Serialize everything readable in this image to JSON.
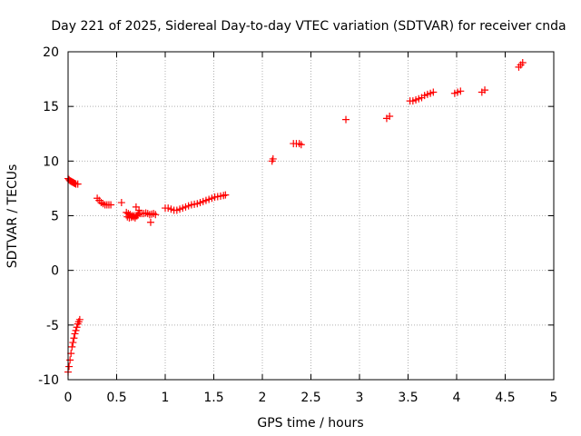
{
  "chart_data": {
    "type": "scatter",
    "title": "Day 221 of 2025, Sidereal Day-to-day VTEC variation (SDTVAR) for receiver cnda",
    "xlabel": "GPS time / hours",
    "ylabel": "SDTVAR / TECUs",
    "xlim": [
      0,
      5
    ],
    "ylim": [
      -10,
      20
    ],
    "xticks": [
      0,
      0.5,
      1,
      1.5,
      2,
      2.5,
      3,
      3.5,
      4,
      4.5,
      5
    ],
    "xtick_labels": [
      "0",
      "0.5",
      "1",
      "1.5",
      "2",
      "2.5",
      "3",
      "3.5",
      "4",
      "4.5",
      "5"
    ],
    "yticks": [
      -10,
      -5,
      0,
      5,
      10,
      15,
      20
    ],
    "ytick_labels": [
      "-10",
      "-5",
      "0",
      "5",
      "10",
      "15",
      "20"
    ],
    "grid": true,
    "marker": "+",
    "color": "#ff0000",
    "series": [
      {
        "name": "SDTVAR",
        "x": [
          0.0,
          0.01,
          0.02,
          0.03,
          0.04,
          0.05,
          0.06,
          0.07,
          0.08,
          0.09,
          0.1,
          0.11,
          0.12,
          0.0,
          0.01,
          0.02,
          0.03,
          0.04,
          0.05,
          0.06,
          0.07,
          0.08,
          0.1,
          0.3,
          0.32,
          0.34,
          0.36,
          0.38,
          0.4,
          0.42,
          0.44,
          0.55,
          0.6,
          0.62,
          0.64,
          0.66,
          0.68,
          0.7,
          0.72,
          0.74,
          0.76,
          0.78,
          0.8,
          0.82,
          0.84,
          0.86,
          0.88,
          0.9,
          0.61,
          0.63,
          0.65,
          0.67,
          0.69,
          0.71,
          0.73,
          0.7,
          0.85,
          1.0,
          1.03,
          1.06,
          1.09,
          1.12,
          1.15,
          1.18,
          1.21,
          1.24,
          1.27,
          1.3,
          1.33,
          1.36,
          1.39,
          1.42,
          1.45,
          1.48,
          1.51,
          1.54,
          1.57,
          1.6,
          1.62,
          2.1,
          2.11,
          2.32,
          2.35,
          2.38,
          2.4,
          2.86,
          3.28,
          3.31,
          3.52,
          3.55,
          3.58,
          3.61,
          3.64,
          3.67,
          3.7,
          3.73,
          3.76,
          3.98,
          4.01,
          4.04,
          4.26,
          4.29,
          4.64,
          4.66,
          4.68
        ],
        "y": [
          -9.3,
          -8.8,
          -8.2,
          -7.6,
          -7.0,
          -6.6,
          -6.2,
          -5.8,
          -5.5,
          -5.2,
          -4.9,
          -4.7,
          -4.5,
          8.4,
          8.3,
          8.2,
          8.15,
          8.1,
          8.05,
          8.0,
          7.95,
          7.9,
          7.9,
          6.6,
          6.4,
          6.2,
          6.1,
          6.0,
          6.0,
          6.0,
          6.0,
          6.2,
          5.3,
          5.2,
          5.1,
          5.0,
          5.0,
          5.0,
          5.1,
          5.2,
          5.2,
          5.2,
          5.25,
          5.2,
          5.1,
          5.15,
          5.2,
          5.1,
          4.9,
          4.8,
          4.85,
          4.9,
          4.8,
          5.0,
          5.5,
          5.8,
          4.4,
          5.7,
          5.7,
          5.6,
          5.5,
          5.5,
          5.6,
          5.7,
          5.8,
          5.9,
          6.0,
          6.05,
          6.1,
          6.2,
          6.3,
          6.4,
          6.5,
          6.6,
          6.7,
          6.75,
          6.8,
          6.85,
          6.9,
          10.0,
          10.2,
          11.6,
          11.6,
          11.6,
          11.5,
          13.8,
          13.9,
          14.1,
          15.5,
          15.5,
          15.6,
          15.7,
          15.8,
          16.0,
          16.1,
          16.2,
          16.3,
          16.2,
          16.3,
          16.4,
          16.3,
          16.5,
          18.6,
          18.8,
          19.0
        ]
      }
    ]
  }
}
